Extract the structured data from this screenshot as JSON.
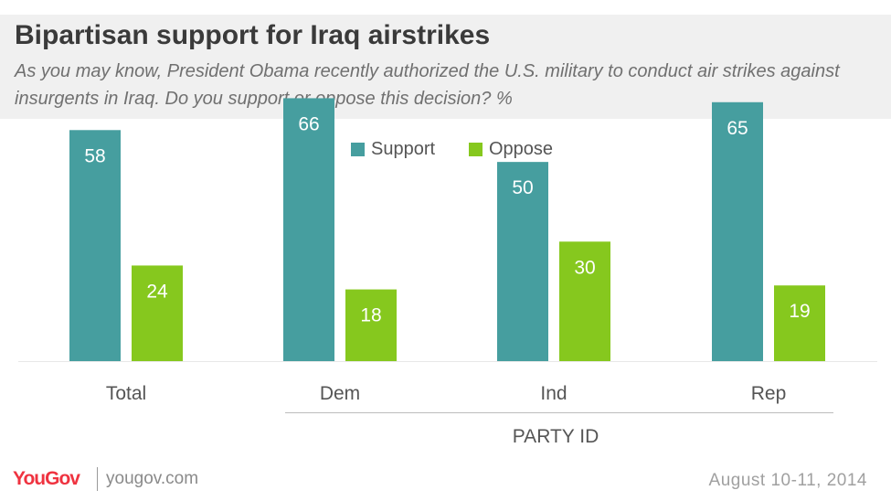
{
  "header": {
    "title": "Bipartisan support for Iraq airstrikes",
    "subtitle": "As you may know, President Obama recently authorized the U.S. military to conduct air strikes against insurgents in Iraq. Do you support or oppose this decision? %"
  },
  "chart_data": {
    "type": "bar",
    "categories": [
      "Total",
      "Dem",
      "Ind",
      "Rep"
    ],
    "series": [
      {
        "name": "Support",
        "values": [
          58,
          66,
          50,
          65
        ],
        "color": "#469e9f"
      },
      {
        "name": "Oppose",
        "values": [
          24,
          18,
          30,
          19
        ],
        "color": "#86c81e"
      }
    ],
    "group_label": "PARTY ID",
    "ylim": [
      0,
      70
    ],
    "grid": false,
    "legend": "top-center",
    "data_label_color": "#ffffff",
    "axis_text_color": "#555555"
  },
  "footer": {
    "logo": "YouGov",
    "site": "yougov.com",
    "date": "August 10-11, 2014",
    "logo_color": "#ef3340"
  }
}
